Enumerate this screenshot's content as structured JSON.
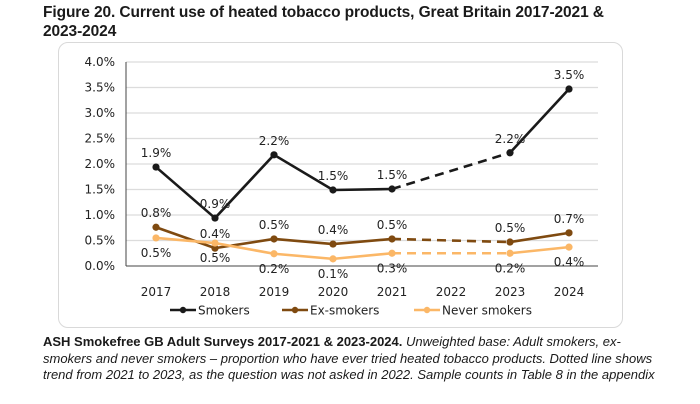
{
  "figure": {
    "title": "Figure 20. Current use of heated tobacco products, Great Britain 2017-2021 & 2023-2024"
  },
  "caption": {
    "source_bold": "ASH Smokefree GB Adult Surveys 2017-2021 & 2023-2024.",
    "note_italic": " Unweighted base: Adult smokers, ex-smokers and never smokers – proportion who have ever tried heated tobacco products. Dotted line shows trend from 2021 to 2023, as the question was not asked in 2022. Sample counts in Table 8 in the appendix"
  },
  "chart_data": {
    "type": "line",
    "title": "Current use of heated tobacco products, Great Britain 2017-2021 & 2023-2024",
    "xlabel": "",
    "ylabel": "",
    "categories": [
      "2017",
      "2018",
      "2019",
      "2020",
      "2021",
      "2022",
      "2023",
      "2024"
    ],
    "ylim": [
      0,
      4.0
    ],
    "yticks": [
      0,
      0.5,
      1.0,
      1.5,
      2.0,
      2.5,
      3.0,
      3.5,
      4.0
    ],
    "ytick_labels": [
      "0.0%",
      "0.5%",
      "1.0%",
      "1.5%",
      "2.0%",
      "2.5%",
      "3.0%",
      "3.5%",
      "4.0%"
    ],
    "grid": true,
    "legend_position": "bottom",
    "gap_note": "2022 not asked; dashed line connects 2021 to 2023",
    "series": [
      {
        "name": "Smokers",
        "color": "#1a1a1a",
        "values": [
          1.94,
          0.94,
          2.18,
          1.49,
          1.51,
          null,
          2.22,
          3.47
        ],
        "labels": [
          "1.9%",
          "0.9%",
          "2.2%",
          "1.5%",
          "1.5%",
          null,
          "2.2%",
          "3.5%"
        ],
        "label_pos": [
          "above",
          "above",
          "above",
          "above",
          "above",
          null,
          "above",
          "above"
        ]
      },
      {
        "name": "Ex-smokers",
        "color": "#7f4a10",
        "values": [
          0.76,
          0.35,
          0.53,
          0.43,
          0.53,
          null,
          0.47,
          0.65
        ],
        "labels": [
          "0.8%",
          "0.4%",
          "0.5%",
          "0.4%",
          "0.5%",
          null,
          "0.5%",
          "0.7%"
        ],
        "label_pos": [
          "above",
          "above",
          "above",
          "above",
          "above",
          null,
          "above",
          "above"
        ]
      },
      {
        "name": "Never smokers",
        "color": "#fbb767",
        "values": [
          0.55,
          0.45,
          0.24,
          0.14,
          0.25,
          null,
          0.25,
          0.37
        ],
        "labels": [
          "0.5%",
          "0.5%",
          "0.2%",
          "0.1%",
          "0.3%",
          null,
          "0.2%",
          "0.4%"
        ],
        "label_pos": [
          "below",
          "below",
          "below",
          "below",
          "below",
          null,
          "below",
          "below"
        ]
      }
    ]
  }
}
